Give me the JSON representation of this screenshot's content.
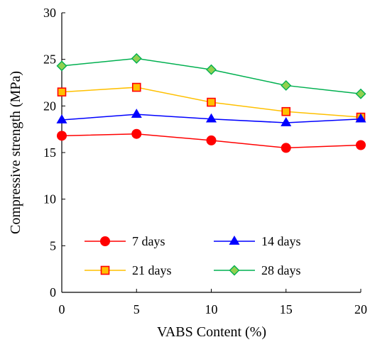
{
  "chart_data": {
    "type": "line",
    "xlabel": "VABS Content (%)",
    "ylabel": "Compressive strength (MPa)",
    "xlim": [
      0,
      20
    ],
    "ylim": [
      0,
      30
    ],
    "x_ticks": [
      "0",
      "5",
      "10",
      "15",
      "20"
    ],
    "y_ticks": [
      "0",
      "5",
      "10",
      "15",
      "20",
      "25",
      "30"
    ],
    "grid": false,
    "legend_position": "lower-center",
    "x": [
      0,
      5,
      10,
      15,
      20
    ],
    "series": [
      {
        "name": "7 days",
        "values": [
          16.8,
          17.0,
          16.3,
          15.5,
          15.8
        ],
        "color": "#ff0000",
        "marker": "circle",
        "marker_fill": "#ff0000"
      },
      {
        "name": "14 days",
        "values": [
          18.5,
          19.1,
          18.6,
          18.2,
          18.6
        ],
        "color": "#0000ff",
        "marker": "triangle",
        "marker_fill": "#0000ff"
      },
      {
        "name": "21 days",
        "values": [
          21.5,
          22.0,
          20.4,
          19.4,
          18.8
        ],
        "color": "#ffc000",
        "marker": "square",
        "marker_fill": "#ffc000",
        "marker_edge": "#ff0000"
      },
      {
        "name": "28 days",
        "values": [
          24.3,
          25.1,
          23.9,
          22.2,
          21.3
        ],
        "color": "#00b050",
        "marker": "diamond",
        "marker_fill": "#92d050",
        "marker_edge": "#00b050"
      }
    ]
  }
}
